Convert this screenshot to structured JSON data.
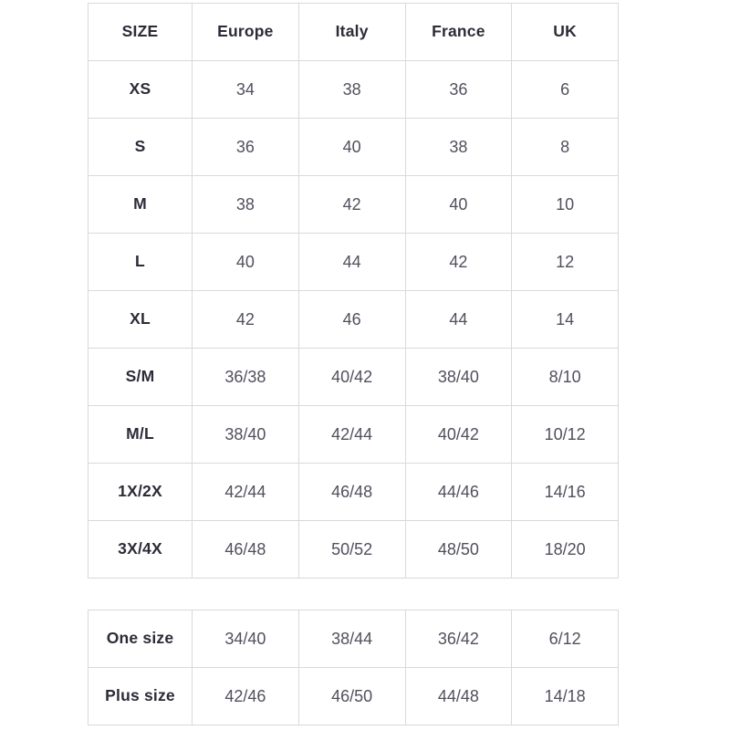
{
  "colors": {
    "background": "#ffffff",
    "header_text": "#2d2b38",
    "value_text": "#524f5d",
    "border": "#d9d9d9"
  },
  "chart_data": {
    "type": "table",
    "columns": [
      "SIZE",
      "Europe",
      "Italy",
      "France",
      "UK"
    ],
    "rows": [
      [
        "XS",
        "34",
        "38",
        "36",
        "6"
      ],
      [
        "S",
        "36",
        "40",
        "38",
        "8"
      ],
      [
        "M",
        "38",
        "42",
        "40",
        "10"
      ],
      [
        "L",
        "40",
        "44",
        "42",
        "12"
      ],
      [
        "XL",
        "42",
        "46",
        "44",
        "14"
      ],
      [
        "S/M",
        "36/38",
        "40/42",
        "38/40",
        "8/10"
      ],
      [
        "M/L",
        "38/40",
        "42/44",
        "40/42",
        "10/12"
      ],
      [
        "1X/2X",
        "42/44",
        "46/48",
        "44/46",
        "14/16"
      ],
      [
        "3X/4X",
        "46/48",
        "50/52",
        "48/50",
        "18/20"
      ]
    ],
    "secondary_rows": [
      [
        "One size",
        "34/40",
        "38/44",
        "36/42",
        "6/12"
      ],
      [
        "Plus size",
        "42/46",
        "46/50",
        "44/48",
        "14/18"
      ]
    ],
    "layout": {
      "grid": "full-borders",
      "two_tables": true
    }
  }
}
